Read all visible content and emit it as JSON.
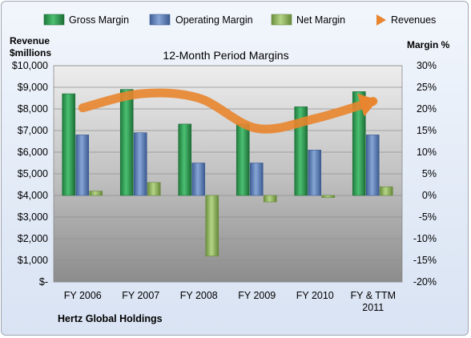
{
  "colors": {
    "gross_margin": "#2f9a52",
    "operating_margin": "#5b80be",
    "net_margin": "#8db35a",
    "revenues": "#e8852e"
  },
  "chart_data": {
    "type": "bar",
    "title": "12-Month Period Margins",
    "left_axis_label_line1": "Revenue",
    "left_axis_label_line2": "$millions",
    "right_axis_label": "Margin %",
    "company": "Hertz Global Holdings",
    "categories": [
      [
        "FY 2006"
      ],
      [
        "FY 2007"
      ],
      [
        "FY 2008"
      ],
      [
        "FY 2009"
      ],
      [
        "FY 2010"
      ],
      [
        "FY & TTM",
        "2011"
      ]
    ],
    "left_ticks": [
      "$-",
      "$1,000",
      "$2,000",
      "$3,000",
      "$4,000",
      "$5,000",
      "$6,000",
      "$7,000",
      "$8,000",
      "$9,000",
      "$10,000"
    ],
    "right_ticks": [
      "-20%",
      "-15%",
      "-10%",
      "-5%",
      "0%",
      "5%",
      "10%",
      "15%",
      "20%",
      "25%",
      "30%"
    ],
    "left_ylim": [
      0,
      10000
    ],
    "right_ylim": [
      -20,
      30
    ],
    "grid": true,
    "legend_position": "top",
    "series": [
      {
        "name": "Gross Margin",
        "kind": "bar",
        "axis": "right",
        "values": [
          23.5,
          24.5,
          16.5,
          16.5,
          20.5,
          24
        ]
      },
      {
        "name": "Operating Margin",
        "kind": "bar",
        "axis": "right",
        "values": [
          14,
          14.5,
          7.5,
          7.5,
          10.5,
          14
        ]
      },
      {
        "name": "Net Margin",
        "kind": "bar",
        "axis": "right",
        "values": [
          1,
          3,
          -14,
          -1.5,
          -0.5,
          2
        ]
      },
      {
        "name": "Revenues",
        "kind": "line",
        "axis": "left",
        "values": [
          8050,
          8700,
          8500,
          7100,
          7550,
          8350
        ]
      }
    ]
  }
}
